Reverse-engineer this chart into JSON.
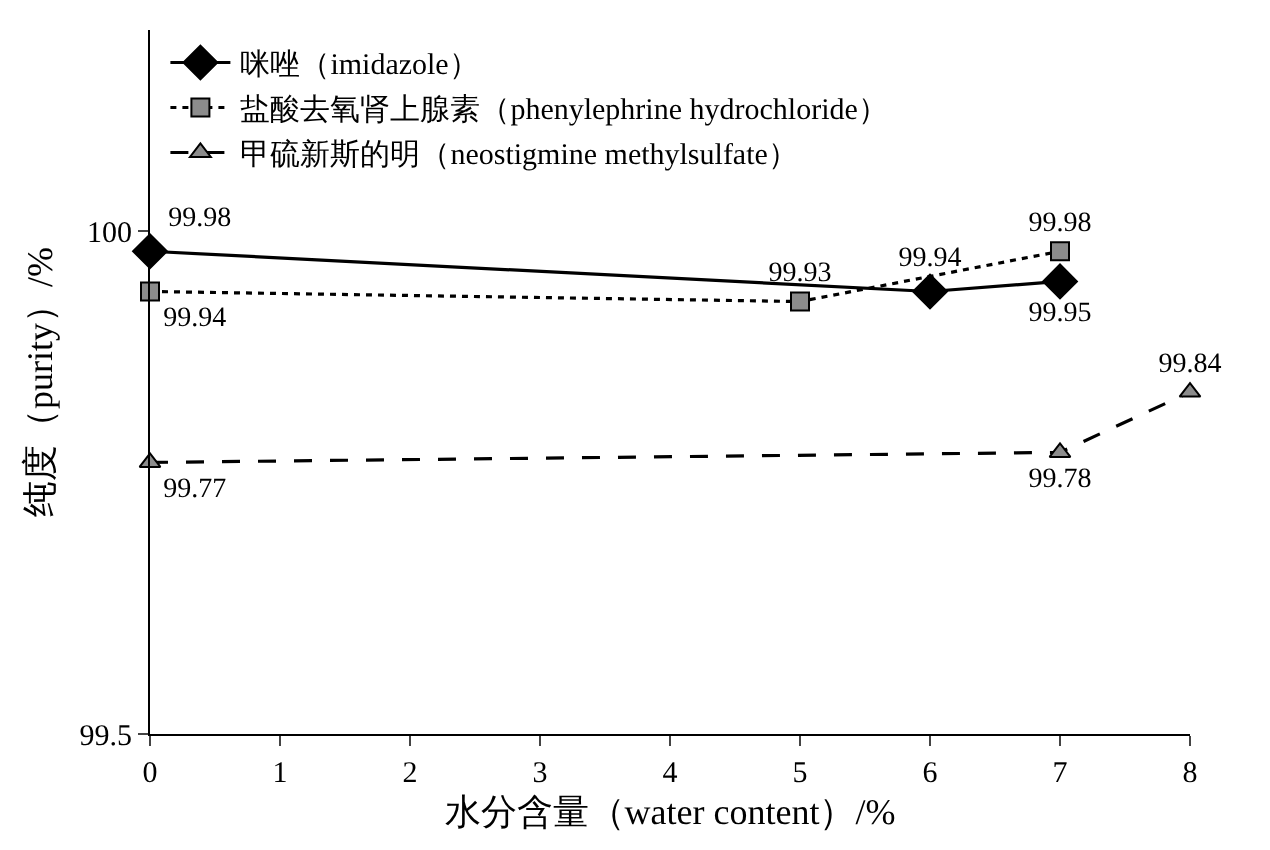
{
  "chart_data": {
    "type": "line",
    "xlabel": "水分含量（water content）/%",
    "ylabel": "纯度（purity）/%",
    "xlim": [
      0,
      8
    ],
    "xticks": [
      0,
      1,
      2,
      3,
      4,
      5,
      6,
      7,
      8
    ],
    "ylim": [
      99.5,
      100.2
    ],
    "yticks": [
      99.5,
      100
    ],
    "grid": false,
    "legend": "top left",
    "data_labels": true,
    "series": [
      {
        "name": "咪唑（imidazole）",
        "color": "#000000",
        "marker": "diamond",
        "line_style": "solid",
        "x": [
          0,
          6,
          7
        ],
        "values": [
          99.98,
          99.94,
          99.95
        ]
      },
      {
        "name": "盐酸去氧肾上腺素（phenylephrine hydrochloride）",
        "color": "#000000",
        "marker": "square",
        "line_style": "dotted",
        "x": [
          0,
          5,
          7
        ],
        "values": [
          99.94,
          99.93,
          99.98
        ]
      },
      {
        "name": "甲硫新斯的明（neostigmine methylsulfate）",
        "color": "#000000",
        "marker": "triangle",
        "line_style": "dashed",
        "x": [
          0,
          7,
          8
        ],
        "values": [
          99.77,
          99.78,
          99.84
        ]
      }
    ]
  }
}
